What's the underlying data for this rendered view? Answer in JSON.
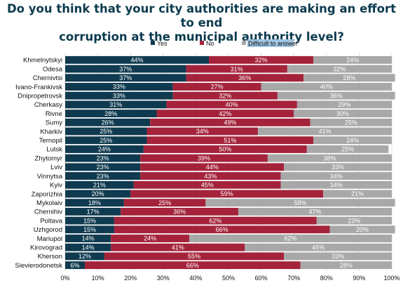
{
  "title": {
    "line1": "Do you think that your city authorities are making an effort to end",
    "line2": "corruption at the municipal authority level?"
  },
  "chart_data": {
    "type": "bar",
    "orientation": "horizontal",
    "stacked": true,
    "percent_stacked": true,
    "categories": [
      "Khmelnytskyi",
      "Odesa",
      "Chernivtsi",
      "Ivano-Frankivsk",
      "Dnipropetrovsk",
      "Cherkasy",
      "Rivne",
      "Sumy",
      "Kharkiv",
      "Ternopil",
      "Lutsk",
      "Zhytomyr",
      "Lviv",
      "Vinnytsa",
      "Kyiv",
      "Zaporizhia",
      "Mykolaiv",
      "Chernihiv",
      "Poltava",
      "Uzhgorod",
      "Mariupol",
      "Kirovograd",
      "Kherson",
      "Sievierodonetsk"
    ],
    "series": [
      {
        "name": "Yes",
        "color": "#0f3a4f",
        "values": [
          44,
          37,
          37,
          33,
          33,
          31,
          28,
          26,
          25,
          25,
          24,
          23,
          23,
          23,
          21,
          20,
          18,
          17,
          15,
          15,
          14,
          14,
          12,
          6
        ]
      },
      {
        "name": "No",
        "color": "#a4233b",
        "values": [
          32,
          31,
          36,
          27,
          32,
          40,
          42,
          49,
          34,
          51,
          50,
          39,
          44,
          43,
          45,
          59,
          25,
          36,
          62,
          66,
          24,
          41,
          55,
          66
        ]
      },
      {
        "name": "Difficult to answer",
        "color": "#a8a8a8",
        "values": [
          24,
          32,
          28,
          40,
          36,
          29,
          30,
          25,
          41,
          24,
          25,
          38,
          33,
          34,
          34,
          21,
          58,
          47,
          23,
          20,
          62,
          45,
          33,
          28
        ]
      }
    ],
    "value_labels": [
      [
        "44%",
        "32%",
        "24%"
      ],
      [
        "37%",
        "31%",
        "32%"
      ],
      [
        "37%",
        "36%",
        "28%"
      ],
      [
        "33%",
        "27%",
        "40%"
      ],
      [
        "33%",
        "32%",
        "36%"
      ],
      [
        "31%",
        "40%",
        "29%"
      ],
      [
        "28%",
        "42%",
        "30%"
      ],
      [
        "26%",
        "49%",
        "25%"
      ],
      [
        "25%",
        "34%",
        "41%"
      ],
      [
        "25%",
        "51%",
        "24%"
      ],
      [
        "24%",
        "50%",
        "25%"
      ],
      [
        "23%",
        "39%",
        "38%"
      ],
      [
        "23%",
        "44%",
        "33%"
      ],
      [
        "23%",
        "43%",
        "34%"
      ],
      [
        "21%",
        "45%",
        "34%"
      ],
      [
        "20%",
        "59%",
        "21%"
      ],
      [
        "18%",
        "25%",
        "58%"
      ],
      [
        "17%",
        "36%",
        "47%"
      ],
      [
        "15%",
        "62%",
        "23%"
      ],
      [
        "15%",
        "66%",
        "20%"
      ],
      [
        "14%",
        "24%",
        "62%"
      ],
      [
        "14%",
        "41%",
        "45%"
      ],
      [
        "12%",
        "55%",
        "33%"
      ],
      [
        "6%",
        "66%",
        "28%"
      ]
    ],
    "xlim": [
      0,
      100
    ],
    "x_ticks": [
      "0%",
      "10%",
      "20%",
      "30%",
      "40%",
      "50%",
      "60%",
      "70%",
      "80%",
      "90%",
      "100%"
    ],
    "xlabel": "",
    "ylabel": "",
    "legend_position": "top",
    "grid": true
  }
}
